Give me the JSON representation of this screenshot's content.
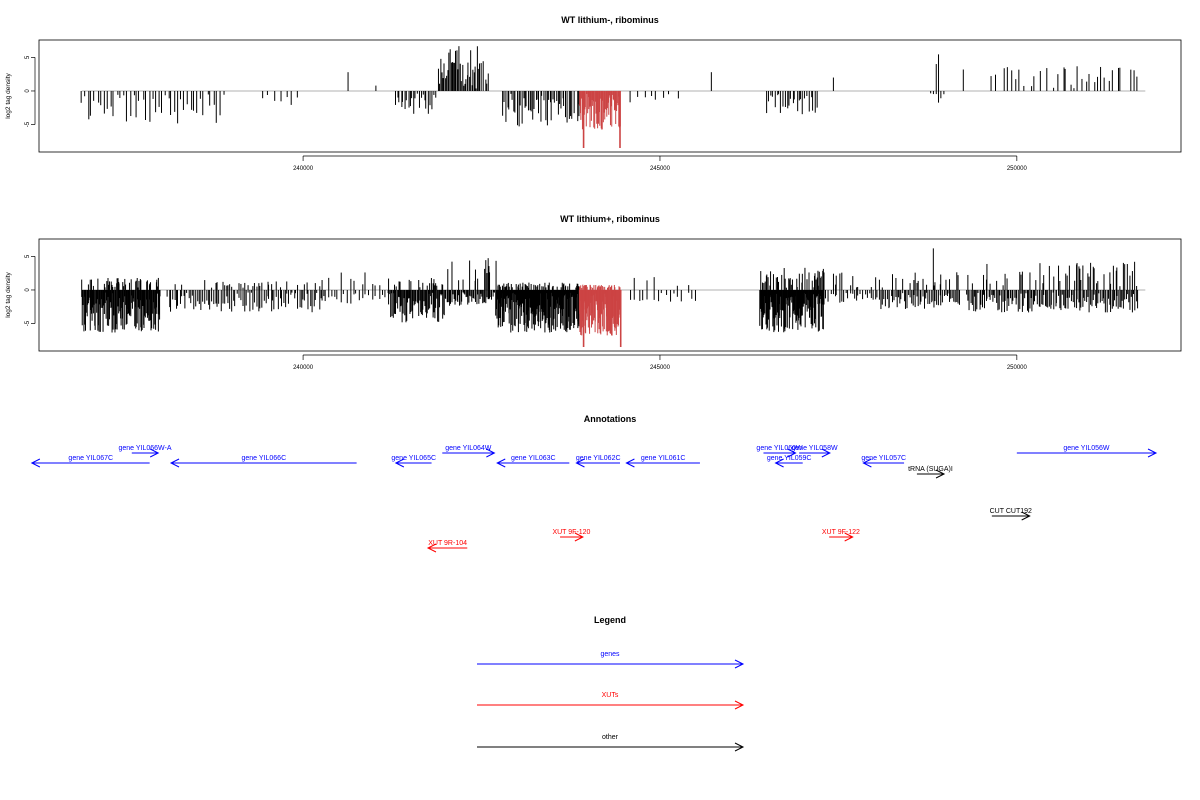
{
  "colors": {
    "genes": "#0000ff",
    "xuts": "#ff0000",
    "other": "#000000",
    "highlight": "#cc4444",
    "axis": "#000000"
  },
  "chart_data": [
    {
      "type": "bar",
      "title": "WT lithium-, ribominus",
      "ylabel": "log2 tag density",
      "xlim": [
        236300,
        252300
      ],
      "ylim": [
        -8.5,
        7
      ],
      "xticks": [
        240000,
        245000,
        250000
      ],
      "yticks": [
        5,
        0,
        -5
      ],
      "highlight_x": [
        243870,
        244490
      ],
      "segments": [
        {
          "from": 236900,
          "to": 238900,
          "neg_max": 4.5,
          "pos_max": 0.0,
          "step": 45,
          "seed": 11
        },
        {
          "from": 239450,
          "to": 240000,
          "neg_max": 1.8,
          "pos_max": 0.0,
          "step": 80,
          "seed": 12
        },
        {
          "from": 241300,
          "to": 241850,
          "neg_max": 3.5,
          "pos_max": 0.0,
          "step": 25,
          "seed": 13
        },
        {
          "from": 241900,
          "to": 242600,
          "neg_max": 0.0,
          "pos_max": 6.8,
          "step": 16,
          "seed": 14
        },
        {
          "from": 242800,
          "to": 243800,
          "neg_max": 5.0,
          "pos_max": 0.0,
          "step": 22,
          "seed": 15
        },
        {
          "from": 243850,
          "to": 244450,
          "neg_max": 5.5,
          "pos_max": 0.0,
          "step": 9,
          "seed": 16
        },
        {
          "from": 244600,
          "to": 245300,
          "neg_max": 1.6,
          "pos_max": 0.0,
          "step": 90,
          "seed": 17
        },
        {
          "from": 246500,
          "to": 247200,
          "neg_max": 3.2,
          "pos_max": 0.0,
          "step": 28,
          "seed": 18
        },
        {
          "from": 248800,
          "to": 249000,
          "neg_max": 1.8,
          "pos_max": 5.3,
          "step": 35,
          "seed": 19
        },
        {
          "from": 249650,
          "to": 251700,
          "neg_max": 0.0,
          "pos_max": 3.5,
          "step": 55,
          "seed": 20
        }
      ],
      "spikes": [
        {
          "x": 243930,
          "y": -8.5,
          "hl": true
        },
        {
          "x": 244440,
          "y": -8.5,
          "hl": true
        },
        {
          "x": 240630,
          "y": 2.8
        },
        {
          "x": 241020,
          "y": 0.8
        },
        {
          "x": 245720,
          "y": 2.8
        },
        {
          "x": 247430,
          "y": 2.0
        },
        {
          "x": 249250,
          "y": 3.2
        }
      ]
    },
    {
      "type": "bar",
      "title": "WT lithium+, ribominus",
      "ylabel": "log2 tag density",
      "xlim": [
        236300,
        252300
      ],
      "ylim": [
        -8.5,
        7
      ],
      "xticks": [
        240000,
        245000,
        250000
      ],
      "yticks": [
        5,
        0,
        -5
      ],
      "highlight_x": [
        243870,
        244490
      ],
      "segments": [
        {
          "from": 236900,
          "to": 238000,
          "neg_max": 6.0,
          "pos_max": 1.5,
          "step": 9,
          "seed": 31
        },
        {
          "from": 238100,
          "to": 240300,
          "neg_max": 3.0,
          "pos_max": 1.2,
          "step": 25,
          "seed": 32
        },
        {
          "from": 240300,
          "to": 241200,
          "neg_max": 1.8,
          "pos_max": 2.5,
          "step": 45,
          "seed": 33
        },
        {
          "from": 241200,
          "to": 242000,
          "neg_max": 4.5,
          "pos_max": 1.5,
          "step": 12,
          "seed": 34
        },
        {
          "from": 242000,
          "to": 242700,
          "neg_max": 2.0,
          "pos_max": 4.5,
          "step": 14,
          "seed": 35
        },
        {
          "from": 242700,
          "to": 243850,
          "neg_max": 6.0,
          "pos_max": 0.8,
          "step": 7,
          "seed": 36
        },
        {
          "from": 243850,
          "to": 244450,
          "neg_max": 6.5,
          "pos_max": 0.5,
          "step": 5,
          "seed": 37
        },
        {
          "from": 244600,
          "to": 245500,
          "neg_max": 1.5,
          "pos_max": 2.0,
          "step": 60,
          "seed": 38
        },
        {
          "from": 246400,
          "to": 247300,
          "neg_max": 6.0,
          "pos_max": 3.0,
          "step": 7,
          "seed": 39
        },
        {
          "from": 247300,
          "to": 248100,
          "neg_max": 1.6,
          "pos_max": 2.5,
          "step": 30,
          "seed": 40
        },
        {
          "from": 248100,
          "to": 249200,
          "neg_max": 2.5,
          "pos_max": 3.0,
          "step": 20,
          "seed": 41
        },
        {
          "from": 249300,
          "to": 251700,
          "neg_max": 3.0,
          "pos_max": 4.0,
          "step": 18,
          "seed": 42
        }
      ],
      "spikes": [
        {
          "x": 243930,
          "y": -8.5,
          "hl": true
        },
        {
          "x": 244450,
          "y": -8.5,
          "hl": true
        },
        {
          "x": 248830,
          "y": 6.2
        },
        {
          "x": 251650,
          "y": 4.2
        }
      ]
    }
  ],
  "annotations": {
    "title": "Annotations",
    "items": [
      {
        "label": "gene YIL067C",
        "type": "gene",
        "start": 236200,
        "end": 237850,
        "dir": "left",
        "row": 1
      },
      {
        "label": "gene YIL066W-A",
        "type": "gene",
        "start": 237600,
        "end": 237970,
        "dir": "right",
        "row": 0
      },
      {
        "label": "gene YIL066C",
        "type": "gene",
        "start": 238150,
        "end": 240750,
        "dir": "left",
        "row": 1
      },
      {
        "label": "gene YIL065C",
        "type": "gene",
        "start": 241300,
        "end": 241800,
        "dir": "left",
        "row": 1
      },
      {
        "label": "gene YIL064W",
        "type": "gene",
        "start": 241950,
        "end": 242680,
        "dir": "right",
        "row": 0
      },
      {
        "label": "gene YIL063C",
        "type": "gene",
        "start": 242720,
        "end": 243730,
        "dir": "left",
        "row": 1
      },
      {
        "label": "gene YIL062C",
        "type": "gene",
        "start": 243830,
        "end": 244440,
        "dir": "left",
        "row": 1
      },
      {
        "label": "gene YIL061C",
        "type": "gene",
        "start": 244530,
        "end": 245560,
        "dir": "left",
        "row": 1
      },
      {
        "label": "gene YIL060W",
        "type": "gene",
        "start": 246450,
        "end": 246900,
        "dir": "right",
        "row": 0
      },
      {
        "label": "gene YIL058W",
        "type": "gene",
        "start": 246950,
        "end": 247380,
        "dir": "right",
        "row": 0
      },
      {
        "label": "gene YIL059C",
        "type": "gene",
        "start": 246620,
        "end": 247000,
        "dir": "left",
        "row": 1
      },
      {
        "label": "gene YIL057C",
        "type": "gene",
        "start": 247850,
        "end": 248420,
        "dir": "left",
        "row": 1
      },
      {
        "label": "tRNA (SUGA)I",
        "type": "other",
        "start": 248600,
        "end": 248980,
        "dir": "right",
        "row": 2
      },
      {
        "label": "gene YIL056W",
        "type": "gene",
        "start": 250000,
        "end": 251950,
        "dir": "right",
        "row": 0
      },
      {
        "label": "CUT CUT192",
        "type": "other",
        "start": 249650,
        "end": 250180,
        "dir": "right",
        "row": 3
      },
      {
        "label": "XUT 9F-120",
        "type": "xut",
        "start": 243600,
        "end": 243920,
        "dir": "right",
        "row": 4
      },
      {
        "label": "XUT 9R-104",
        "type": "xut",
        "start": 241750,
        "end": 242300,
        "dir": "left",
        "row": 5
      },
      {
        "label": "XUT 9F-122",
        "type": "xut",
        "start": 247370,
        "end": 247700,
        "dir": "right",
        "row": 4
      }
    ]
  },
  "legend": {
    "title": "Legend",
    "items": [
      {
        "label": "genes",
        "type": "gene"
      },
      {
        "label": "XUTs",
        "type": "xut"
      },
      {
        "label": "other",
        "type": "other"
      }
    ]
  }
}
